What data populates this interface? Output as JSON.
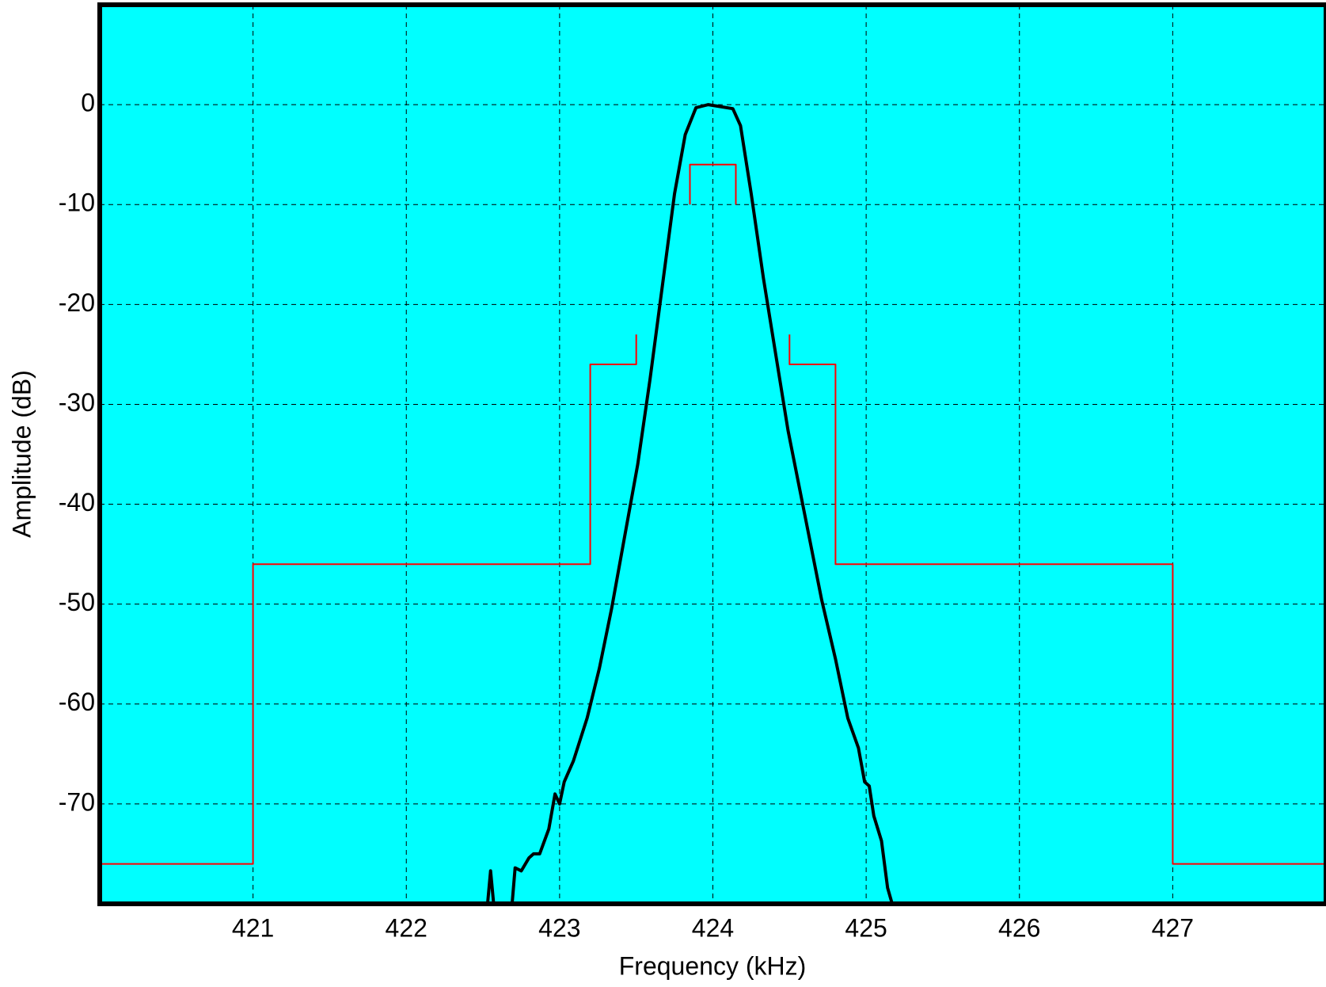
{
  "chart_data": {
    "type": "line",
    "xlabel": "Frequency (kHz)",
    "ylabel": "Amplitude (dB)",
    "xlim": [
      420,
      428
    ],
    "ylim": [
      -80,
      10
    ],
    "xticks": [
      421,
      422,
      423,
      424,
      425,
      426,
      427
    ],
    "yticks": [
      0,
      -10,
      -20,
      -30,
      -40,
      -50,
      -60,
      -70
    ],
    "grid": true,
    "background": "#00ffff",
    "series": [
      {
        "color": "#ff0000",
        "x": [
          420,
          420,
          421,
          421,
          423.2,
          423.2,
          423.5,
          423.5,
          424,
          424.5,
          424.5,
          424.8,
          424.8,
          427,
          427,
          428,
          424,
          423.85,
          423.85,
          424.15,
          424.15
        ],
        "values": [
          -80,
          -76,
          -76,
          -46,
          -46,
          -26,
          -26,
          -23,
          null,
          -23,
          -26,
          -26,
          -46,
          -46,
          -76,
          -76,
          null,
          -10,
          -6,
          -6,
          -10
        ]
      },
      {
        "color": "#000000",
        "x": [
          422.53,
          422.55,
          422.57,
          422.69,
          422.71,
          422.75,
          422.8,
          422.83,
          422.87,
          422.93,
          422.97,
          423.0,
          423.03,
          423.09,
          423.18,
          423.26,
          423.34,
          423.42,
          423.51,
          423.59,
          423.67,
          423.75,
          423.82,
          423.89,
          423.97,
          424.05,
          424.13,
          424.18,
          424.25,
          424.33,
          424.41,
          424.49,
          424.6,
          424.71,
          424.8,
          424.88,
          424.95,
          424.99,
          425.02,
          425.05,
          425.1,
          425.14,
          425.17
        ],
        "values": [
          -80,
          -76.7,
          -80,
          -80,
          -76.4,
          -76.7,
          -75.4,
          -75,
          -75,
          -72.5,
          -69,
          -70,
          -67.8,
          -65.7,
          -61.4,
          -56.4,
          -50.4,
          -43.6,
          -36,
          -27.5,
          -18.2,
          -8.9,
          -3,
          -0.3,
          0,
          -0.2,
          -0.4,
          -2.1,
          -8.9,
          -17.4,
          -25,
          -32.6,
          -41.1,
          -49.6,
          -55.5,
          -61.4,
          -64.4,
          -67.8,
          -68.2,
          -71.2,
          -73.7,
          -78.4,
          -80
        ]
      }
    ]
  }
}
